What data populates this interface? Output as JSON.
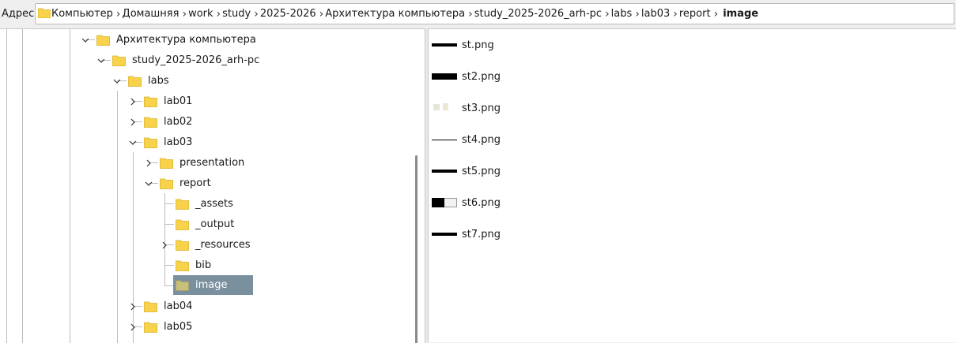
{
  "address": {
    "label": "Адрес:",
    "segments": [
      "Компьютер",
      "Домашняя",
      "work",
      "study",
      "2025-2026",
      "Архитектура компьютера",
      "study_2025-2026_arh-pc",
      "labs",
      "lab03",
      "report"
    ],
    "current": "image"
  },
  "tree": {
    "nodes": [
      {
        "label": "Архитектура компьютера",
        "expanded": true
      },
      {
        "label": "study_2025-2026_arh-pc",
        "expanded": true
      },
      {
        "label": "labs",
        "expanded": true
      },
      {
        "label": "lab01",
        "expanded": false
      },
      {
        "label": "lab02",
        "expanded": false
      },
      {
        "label": "lab03",
        "expanded": true
      },
      {
        "label": "presentation",
        "expanded": false
      },
      {
        "label": "report",
        "expanded": true
      },
      {
        "label": "_assets"
      },
      {
        "label": "_output"
      },
      {
        "label": "_resources",
        "expanded": false
      },
      {
        "label": "bib"
      },
      {
        "label": "image",
        "selected": true
      },
      {
        "label": "lab04",
        "expanded": false
      },
      {
        "label": "lab05",
        "expanded": false
      }
    ]
  },
  "files": [
    {
      "name": "st.png",
      "thumb": "bar"
    },
    {
      "name": "st2.png",
      "thumb": "bar-thick"
    },
    {
      "name": "st3.png",
      "thumb": "faint"
    },
    {
      "name": "st4.png",
      "thumb": "line"
    },
    {
      "name": "st5.png",
      "thumb": "bar"
    },
    {
      "name": "st6.png",
      "thumb": "split"
    },
    {
      "name": "st7.png",
      "thumb": "bar"
    }
  ],
  "colors": {
    "folder": "#f7d24a",
    "selection": "#7b909f"
  }
}
